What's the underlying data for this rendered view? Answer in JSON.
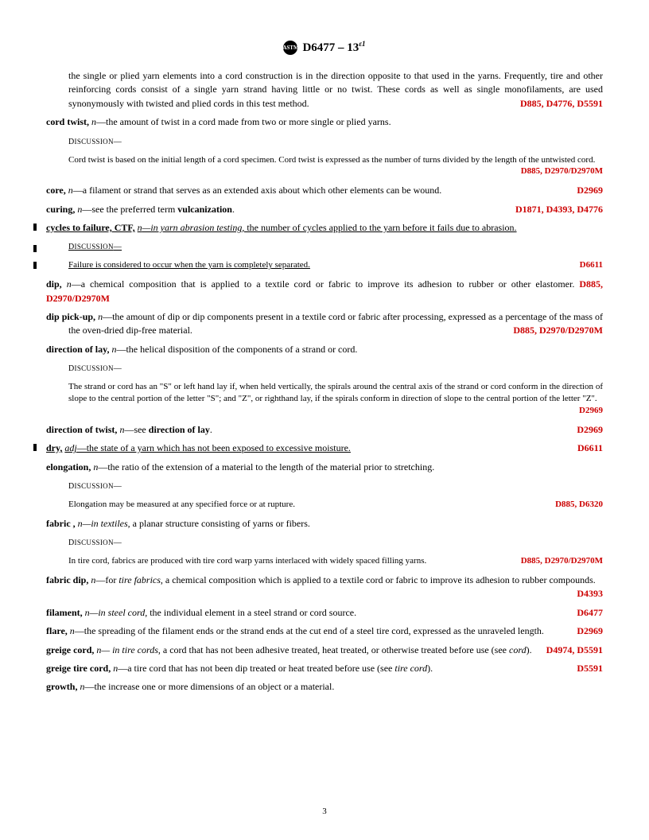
{
  "header": {
    "designation": "D6477 – 13",
    "epsilon": "ε1"
  },
  "entries": [
    {
      "type": "cont",
      "text": "the single or plied yarn elements into a cord construction is in the direction opposite to that used in the yarns. Frequently, tire and other reinforcing cords consist of a single yarn strand having little or no twist. These cords as well as single monofilaments, are used synonymously with twisted and plied cords in this test method.",
      "ref": "D885, D4776, D5591"
    },
    {
      "type": "term",
      "term": "cord twist,",
      "pos": "n",
      "def": "—the amount of twist in a cord made from two or more single or plied yarns."
    },
    {
      "type": "disc-label"
    },
    {
      "type": "disc",
      "text": "Cord twist is based on the initial length of a cord specimen. Cord twist is expressed as the number of turns divided by the length of the untwisted cord.",
      "ref": "D885, D2970/D2970M"
    },
    {
      "type": "term",
      "term": "core,",
      "pos": "n",
      "def": "—a filament or strand that serves as an extended axis about which other elements can be wound.",
      "ref": "D2969"
    },
    {
      "type": "term",
      "term": "curing,",
      "pos": "n",
      "def": "—see the preferred term ",
      "bold2": "vulcanization",
      "def2": ".",
      "ref": "D1871, D4393, D4776"
    },
    {
      "type": "term",
      "underline": true,
      "bar": true,
      "term": "cycles to failure, CTF,",
      "pos": "n",
      "context": "—in yarn abrasion testing",
      "def": ", the number of cycles applied to the yarn before it fails due to abrasion."
    },
    {
      "type": "disc-label",
      "underline": true,
      "bar": true
    },
    {
      "type": "disc",
      "underline": true,
      "bar": true,
      "text": "Failure is considered to occur when the yarn is completely separated.",
      "ref": "D6611"
    },
    {
      "type": "term",
      "term": "dip,",
      "pos": "n",
      "def": "—a chemical composition that is applied to a textile cord or fabric to improve its adhesion to rubber or other elastomer. ",
      "ref_inline": "D885, D2970/D2970M"
    },
    {
      "type": "term",
      "term": "dip pick-up,",
      "pos": "n",
      "def": "—the amount of dip or dip components present in a textile cord or fabric after processing, expressed as a percentage of the mass of the oven-dried dip-free material.",
      "ref": "D885, D2970/D2970M",
      "hang": true
    },
    {
      "type": "term",
      "term": "direction of lay,",
      "pos": "n",
      "def": "—the helical disposition of the components of a strand or cord."
    },
    {
      "type": "disc-label"
    },
    {
      "type": "disc",
      "text": "The strand or cord has an \"S\" or left hand lay if, when held vertically, the spirals around the central axis of the strand or cord conform in the direction of slope to the central portion of the letter \"S\"; and \"Z\", or righthand lay, if the spirals conform in direction of slope to the central portion of the letter \"Z\".",
      "ref": "D2969"
    },
    {
      "type": "term",
      "term": "direction of twist,",
      "pos": "n",
      "def": "—see ",
      "bold2": "direction of lay",
      "def2": ".",
      "ref": "D2969"
    },
    {
      "type": "term",
      "underline": true,
      "bar": true,
      "term": "dry,",
      "pos": "adj",
      "def": "—the state of a yarn which has not been exposed to excessive moisture.",
      "ref": "D6611"
    },
    {
      "type": "term",
      "term": "elongation,",
      "pos": "n",
      "def": "—the ratio of the extension of a material to the length of the material prior to stretching."
    },
    {
      "type": "disc-label"
    },
    {
      "type": "disc",
      "text": "Elongation may be measured at any specified force or at rupture.",
      "ref": "D885, D6320"
    },
    {
      "type": "term",
      "term": "fabric ,",
      "pos": "n",
      "context": "—in textiles",
      "def": ", a planar structure consisting of yarns or fibers."
    },
    {
      "type": "disc-label"
    },
    {
      "type": "disc",
      "text": "In tire cord, fabrics are produced with tire cord warp yarns interlaced with widely spaced filling yarns.",
      "ref": "D885, D2970/D2970M"
    },
    {
      "type": "term",
      "term": "fabric dip,",
      "pos": "n",
      "def": "—for ",
      "italic": "tire fabrics",
      "def2": ", a chemical composition which is applied to a textile cord or fabric to improve its adhesion to rubber compounds.",
      "ref": "D4393",
      "hang": true
    },
    {
      "type": "term",
      "term": "filament,",
      "pos": "n",
      "context": "—in steel cord",
      "def": ", the individual element in a steel strand or cord source.",
      "ref": "D6477"
    },
    {
      "type": "term",
      "term": "flare,",
      "pos": "n",
      "def": "—the spreading of the filament ends or the strand ends at the cut end of a steel tire cord, expressed as the unraveled length.",
      "ref": "D2969"
    },
    {
      "type": "term",
      "term": "greige cord,",
      "pos": "n",
      "context": "— in tire cords",
      "def": ", a cord that has not been adhesive treated, heat treated, or otherwise treated before use (see ",
      "italic": "cord",
      "def2": ").",
      "ref": "D4974, D5591"
    },
    {
      "type": "term",
      "term": "greige tire cord,",
      "pos": "n",
      "def": "—a tire cord that has not been dip treated or heat treated before use (see ",
      "italic": "tire cord",
      "def2": ").",
      "ref": "D5591"
    },
    {
      "type": "term",
      "term": "growth,",
      "pos": "n",
      "def": "—the increase one or more dimensions of an object or a material."
    }
  ],
  "pagenum": "3"
}
